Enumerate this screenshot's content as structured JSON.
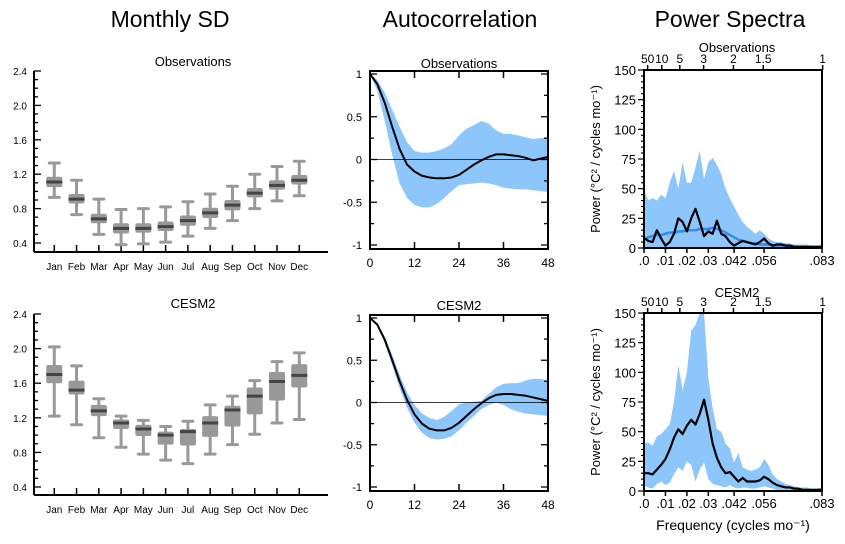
{
  "column_titles": {
    "monthly_sd": "Monthly SD",
    "autocorrelation": "Autocorrelation",
    "power_spectra": "Power Spectra"
  },
  "colors": {
    "band": "#8dc6fb",
    "spec_mean": "#2f8cf0",
    "box_fill": "#999999",
    "median": "#444444",
    "line": "#000000"
  },
  "xlabel_spectra": "Frequency (cycles mo⁻¹)",
  "ylabel_spectra": "Power (°C² / cycles mo⁻¹)",
  "chart_data": [
    {
      "type": "box",
      "title": "Observations",
      "column": "Monthly SD",
      "categories": [
        "Jan",
        "Feb",
        "Mar",
        "Apr",
        "May",
        "Jun",
        "Jul",
        "Aug",
        "Sep",
        "Oct",
        "Nov",
        "Dec"
      ],
      "yticks": [
        "0.4",
        "0.8",
        "1.2",
        "1.6",
        "2.0",
        "2.4"
      ],
      "ylim": [
        0.4,
        2.4
      ],
      "whisker_low": [
        0.93,
        0.73,
        0.5,
        0.38,
        0.39,
        0.41,
        0.48,
        0.57,
        0.66,
        0.8,
        0.89,
        0.95
      ],
      "q1": [
        1.05,
        0.86,
        0.63,
        0.51,
        0.52,
        0.54,
        0.6,
        0.69,
        0.78,
        0.93,
        1.02,
        1.08
      ],
      "median": [
        1.11,
        0.91,
        0.68,
        0.57,
        0.57,
        0.59,
        0.66,
        0.75,
        0.84,
        0.98,
        1.07,
        1.13
      ],
      "q3": [
        1.17,
        0.97,
        0.74,
        0.63,
        0.63,
        0.65,
        0.72,
        0.81,
        0.9,
        1.04,
        1.13,
        1.19
      ],
      "whisker_high": [
        1.33,
        1.13,
        0.91,
        0.79,
        0.8,
        0.82,
        0.88,
        0.97,
        1.06,
        1.2,
        1.29,
        1.35
      ]
    },
    {
      "type": "box",
      "title": "CESM2",
      "column": "Monthly SD",
      "categories": [
        "Jan",
        "Feb",
        "Mar",
        "Apr",
        "May",
        "Jun",
        "Jul",
        "Aug",
        "Sep",
        "Oct",
        "Nov",
        "Dec"
      ],
      "yticks": [
        "0.4",
        "0.8",
        "1.2",
        "1.6",
        "2.0",
        "2.4"
      ],
      "ylim": [
        0.4,
        2.4
      ],
      "whisker_low": [
        1.22,
        1.12,
        0.97,
        0.86,
        0.78,
        0.71,
        0.67,
        0.78,
        0.89,
        1.01,
        1.14,
        1.18
      ],
      "q1": [
        1.6,
        1.47,
        1.22,
        1.07,
        0.99,
        0.89,
        0.88,
        0.98,
        1.1,
        1.24,
        1.4,
        1.55
      ],
      "median": [
        1.7,
        1.52,
        1.28,
        1.14,
        1.07,
        1.0,
        1.04,
        1.14,
        1.29,
        1.45,
        1.62,
        1.69
      ],
      "q3": [
        1.81,
        1.63,
        1.35,
        1.18,
        1.12,
        1.04,
        1.07,
        1.22,
        1.34,
        1.55,
        1.73,
        1.82
      ],
      "whisker_high": [
        2.02,
        1.8,
        1.42,
        1.22,
        1.17,
        1.1,
        1.16,
        1.35,
        1.45,
        1.63,
        1.85,
        1.95
      ]
    },
    {
      "type": "line",
      "title": "Observations",
      "column": "Autocorrelation",
      "xlim": [
        0,
        48
      ],
      "ylim": [
        -1,
        1
      ],
      "xticks": [
        "0",
        "12",
        "24",
        "36",
        "48"
      ],
      "yticks": [
        "-1",
        "-0.5",
        "0",
        "0.5",
        "1"
      ],
      "x": [
        0,
        2,
        4,
        6,
        8,
        10,
        12,
        14,
        16,
        18,
        20,
        22,
        24,
        26,
        28,
        30,
        32,
        34,
        36,
        38,
        40,
        42,
        44,
        46,
        48
      ],
      "mean": [
        1.0,
        0.88,
        0.66,
        0.38,
        0.12,
        -0.06,
        -0.14,
        -0.19,
        -0.21,
        -0.22,
        -0.22,
        -0.21,
        -0.18,
        -0.12,
        -0.06,
        -0.01,
        0.03,
        0.06,
        0.06,
        0.05,
        0.04,
        0.02,
        -0.01,
        0.01,
        0.03
      ],
      "upper": [
        1.0,
        0.93,
        0.78,
        0.58,
        0.38,
        0.2,
        0.1,
        0.08,
        0.08,
        0.1,
        0.13,
        0.18,
        0.28,
        0.36,
        0.4,
        0.45,
        0.42,
        0.34,
        0.3,
        0.3,
        0.28,
        0.26,
        0.24,
        0.25,
        0.26
      ],
      "lower": [
        1.0,
        0.8,
        0.45,
        0.05,
        -0.28,
        -0.45,
        -0.53,
        -0.56,
        -0.56,
        -0.52,
        -0.45,
        -0.37,
        -0.3,
        -0.29,
        -0.28,
        -0.27,
        -0.28,
        -0.3,
        -0.33,
        -0.34,
        -0.35,
        -0.35,
        -0.36,
        -0.37,
        -0.38
      ]
    },
    {
      "type": "line",
      "title": "CESM2",
      "column": "Autocorrelation",
      "xlim": [
        0,
        48
      ],
      "ylim": [
        -1,
        1
      ],
      "xticks": [
        "0",
        "12",
        "24",
        "36",
        "48"
      ],
      "yticks": [
        "-1",
        "-0.5",
        "0",
        "0.5",
        "1"
      ],
      "x": [
        0,
        2,
        4,
        6,
        8,
        10,
        12,
        14,
        16,
        18,
        20,
        22,
        24,
        26,
        28,
        30,
        32,
        34,
        36,
        38,
        40,
        42,
        44,
        46,
        48
      ],
      "mean": [
        1.0,
        0.92,
        0.74,
        0.5,
        0.25,
        0.03,
        -0.14,
        -0.25,
        -0.31,
        -0.33,
        -0.33,
        -0.3,
        -0.24,
        -0.16,
        -0.08,
        -0.01,
        0.05,
        0.09,
        0.1,
        0.1,
        0.09,
        0.08,
        0.06,
        0.04,
        0.02
      ],
      "upper": [
        1.0,
        0.93,
        0.78,
        0.56,
        0.33,
        0.12,
        -0.03,
        -0.13,
        -0.18,
        -0.21,
        -0.17,
        -0.1,
        -0.02,
        0.0,
        0.01,
        0.02,
        0.1,
        0.18,
        0.22,
        0.23,
        0.23,
        0.26,
        0.28,
        0.28,
        0.26
      ],
      "lower": [
        1.0,
        0.91,
        0.7,
        0.44,
        0.17,
        -0.06,
        -0.24,
        -0.36,
        -0.42,
        -0.44,
        -0.43,
        -0.4,
        -0.33,
        -0.24,
        -0.16,
        -0.08,
        -0.03,
        0.0,
        -0.03,
        -0.08,
        -0.11,
        -0.13,
        -0.14,
        -0.15,
        -0.16
      ]
    },
    {
      "type": "area",
      "title": "Observations",
      "column": "Power Spectra",
      "xlim": [
        0,
        0.083
      ],
      "ylim": [
        0,
        150
      ],
      "xticks": [
        ".0",
        ".01",
        ".02",
        ".03",
        ".042",
        ".056",
        ".083"
      ],
      "xtick_values": [
        0,
        0.01,
        0.02,
        0.03,
        0.042,
        0.056,
        0.083
      ],
      "top_ticks": [
        "50",
        "10",
        "5",
        "3",
        "2",
        "1.5",
        "1"
      ],
      "top_tick_values": [
        0.0017,
        0.0083,
        0.0167,
        0.0278,
        0.0417,
        0.0556,
        0.0833
      ],
      "yticks": [
        "0",
        "25",
        "50",
        "75",
        "100",
        "125",
        "150"
      ],
      "freq": [
        0.0,
        0.002,
        0.004,
        0.006,
        0.008,
        0.01,
        0.012,
        0.014,
        0.016,
        0.018,
        0.02,
        0.022,
        0.024,
        0.026,
        0.028,
        0.03,
        0.032,
        0.034,
        0.036,
        0.038,
        0.04,
        0.042,
        0.044,
        0.046,
        0.048,
        0.05,
        0.052,
        0.054,
        0.056,
        0.058,
        0.06,
        0.062,
        0.064,
        0.066,
        0.068,
        0.07,
        0.072,
        0.074,
        0.076,
        0.078,
        0.08,
        0.083
      ],
      "power": [
        8,
        6,
        5,
        15,
        8,
        2,
        5,
        12,
        25,
        22,
        14,
        25,
        33,
        22,
        10,
        14,
        12,
        23,
        12,
        10,
        5,
        2,
        4,
        6,
        5,
        4,
        3,
        5,
        8,
        4,
        2,
        3,
        3,
        2,
        2,
        1,
        1,
        1,
        1,
        1,
        1,
        1
      ],
      "mean_spectrum": [
        8,
        9,
        10,
        11,
        11,
        12,
        13,
        13,
        14,
        14,
        15,
        15,
        15,
        16,
        16,
        16,
        17,
        16,
        15,
        13,
        11,
        9,
        7,
        6,
        5,
        4,
        4,
        3,
        3,
        3,
        2,
        2,
        2,
        2,
        2,
        1,
        1,
        1,
        1,
        1,
        1,
        1
      ],
      "upper": [
        47,
        40,
        42,
        40,
        45,
        42,
        55,
        65,
        50,
        72,
        55,
        55,
        68,
        82,
        58,
        72,
        76,
        70,
        62,
        50,
        42,
        35,
        28,
        22,
        18,
        15,
        12,
        15,
        12,
        8,
        6,
        5,
        5,
        4,
        4,
        3,
        3,
        3,
        3,
        2,
        2,
        2
      ],
      "lower": [
        0,
        0,
        0,
        0,
        0,
        0,
        0,
        0,
        0,
        0,
        0,
        0,
        0,
        0,
        0,
        0,
        0,
        0,
        0,
        0,
        0,
        0,
        0,
        0,
        0,
        0,
        0,
        0,
        0,
        0,
        0,
        0,
        0,
        0,
        0,
        0,
        0,
        0,
        0,
        0,
        0,
        0
      ]
    },
    {
      "type": "area",
      "title": "CESM2",
      "column": "Power Spectra",
      "xlim": [
        0,
        0.083
      ],
      "ylim": [
        0,
        150
      ],
      "xticks": [
        ".0",
        ".01",
        ".02",
        ".03",
        ".042",
        ".056",
        ".083"
      ],
      "xtick_values": [
        0,
        0.01,
        0.02,
        0.03,
        0.042,
        0.056,
        0.083
      ],
      "top_ticks": [
        "50",
        "10",
        "5",
        "3",
        "2",
        "1.5",
        "1"
      ],
      "top_tick_values": [
        0.0017,
        0.0083,
        0.0167,
        0.0278,
        0.0417,
        0.0556,
        0.0833
      ],
      "yticks": [
        "0",
        "25",
        "50",
        "75",
        "100",
        "125",
        "150"
      ],
      "freq": [
        0.0,
        0.002,
        0.004,
        0.006,
        0.008,
        0.01,
        0.012,
        0.014,
        0.016,
        0.018,
        0.02,
        0.022,
        0.024,
        0.026,
        0.028,
        0.03,
        0.032,
        0.034,
        0.036,
        0.038,
        0.04,
        0.042,
        0.044,
        0.046,
        0.048,
        0.05,
        0.052,
        0.054,
        0.056,
        0.058,
        0.06,
        0.062,
        0.064,
        0.066,
        0.068,
        0.07,
        0.072,
        0.074,
        0.076,
        0.078,
        0.08,
        0.083
      ],
      "power": [
        15,
        15,
        14,
        18,
        22,
        27,
        35,
        45,
        52,
        48,
        55,
        60,
        56,
        65,
        77,
        60,
        40,
        28,
        20,
        15,
        16,
        12,
        8,
        11,
        8,
        8,
        8,
        9,
        12,
        10,
        7,
        5,
        4,
        3,
        3,
        2,
        2,
        1,
        1,
        1,
        1,
        1
      ],
      "upper": [
        40,
        41,
        38,
        46,
        48,
        52,
        56,
        75,
        106,
        85,
        100,
        135,
        140,
        150,
        150,
        95,
        70,
        52,
        50,
        40,
        36,
        24,
        32,
        20,
        18,
        17,
        18,
        20,
        27,
        22,
        14,
        10,
        8,
        6,
        5,
        4,
        3,
        3,
        3,
        2,
        2,
        3
      ],
      "lower": [
        4,
        3,
        2,
        6,
        8,
        5,
        7,
        14,
        20,
        17,
        25,
        22,
        8,
        18,
        24,
        10,
        6,
        5,
        4,
        3,
        5,
        3,
        2,
        3,
        3,
        2,
        2,
        3,
        4,
        3,
        2,
        1,
        1,
        1,
        0,
        0,
        0,
        0,
        0,
        0,
        0,
        0
      ]
    }
  ]
}
